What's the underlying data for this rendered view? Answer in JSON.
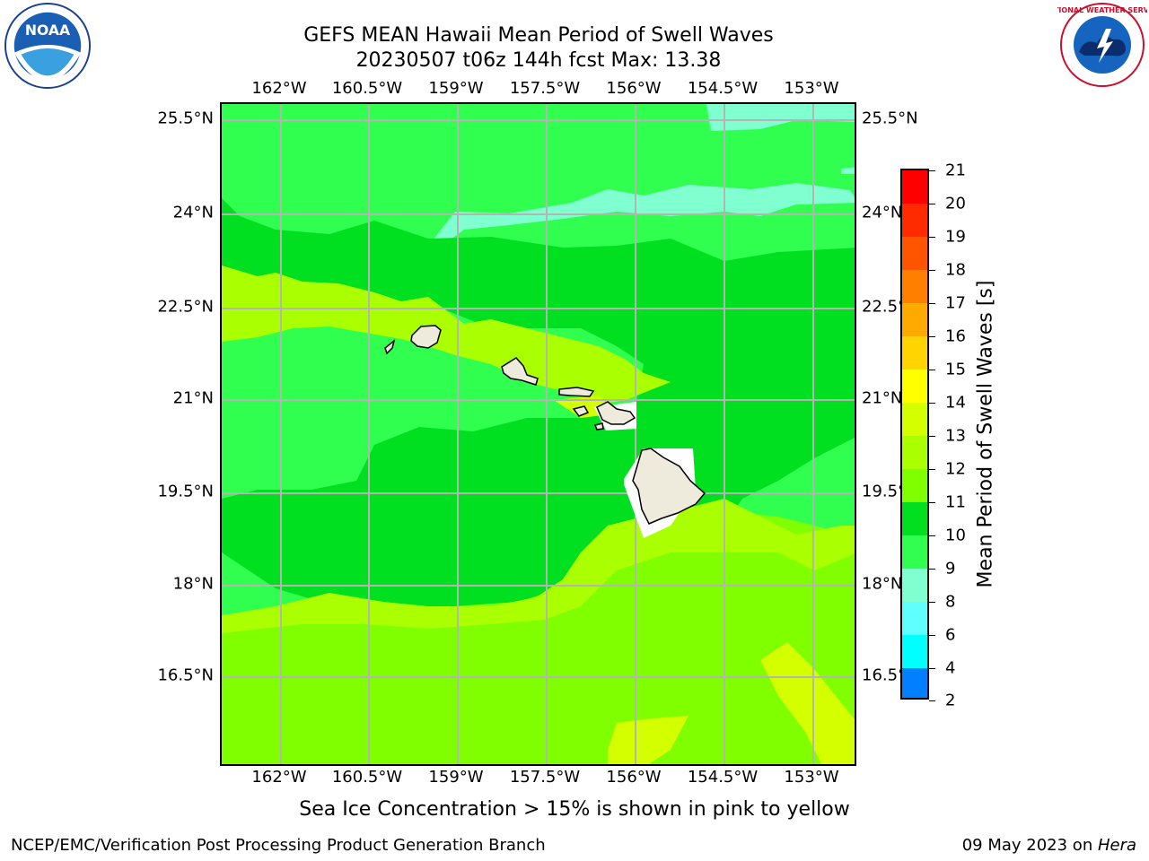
{
  "title_line1": "GEFS MEAN Hawaii Mean Period of Swell Waves",
  "title_line2": "20230507 t06z 144h fcst   Max: 13.38",
  "lon_ticks": [
    "162°W",
    "160.5°W",
    "159°W",
    "157.5°W",
    "156°W",
    "154.5°W",
    "153°W"
  ],
  "lat_ticks": [
    "25.5°N",
    "24°N",
    "22.5°N",
    "21°N",
    "19.5°N",
    "18°N",
    "16.5°N"
  ],
  "colorbar": {
    "label": "Mean Period of Swell Waves [s]",
    "ticks": [
      "21",
      "20",
      "19",
      "18",
      "17",
      "16",
      "15",
      "14",
      "13",
      "12",
      "11",
      "10",
      "9",
      "8",
      "6",
      "4",
      "2"
    ],
    "colors": [
      "#ff0000",
      "#ff2a00",
      "#ff5500",
      "#ff7f00",
      "#ffaa00",
      "#ffd400",
      "#ffff00",
      "#d4ff00",
      "#aaff00",
      "#7fff00",
      "#00e020",
      "#30ff50",
      "#80ffd0",
      "#60ffff",
      "#00ffff",
      "#0080ff",
      "#0000ff"
    ]
  },
  "note": "Sea Ice Concentration > 15% is shown in pink to yellow",
  "footer_left": "NCEP/EMC/Verification Post Processing Product Generation Branch",
  "footer_right_date": "09 May 2023 on ",
  "footer_right_host": "Hera",
  "logos": {
    "noaa_text": "NOAA",
    "nws_text": "NATIONAL WEATHER SERVICE"
  }
}
